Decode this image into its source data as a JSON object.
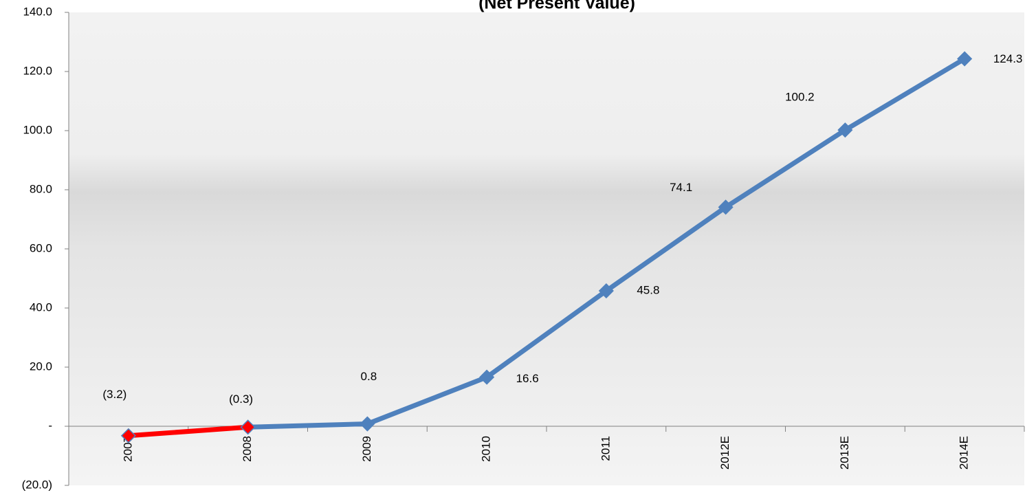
{
  "chart_data": {
    "type": "line",
    "subtitle": "(Net Present Value)",
    "categories": [
      "2007",
      "2008",
      "2009",
      "2010",
      "2011",
      "2012E",
      "2013E",
      "2014E"
    ],
    "values": [
      -3.2,
      -0.3,
      0.8,
      16.6,
      45.8,
      74.1,
      100.2,
      124.3
    ],
    "value_labels": [
      "(3.2)",
      "(0.3)",
      "0.8",
      "16.6",
      "45.8",
      "74.1",
      "100.2",
      "124.3"
    ],
    "color": "#4f81bd",
    "point_colors": [
      "#ff0000",
      "#ff0000",
      "#4f81bd",
      "#4f81bd",
      "#4f81bd",
      "#4f81bd",
      "#4f81bd",
      "#4f81bd"
    ],
    "ylim": [
      -20,
      140
    ],
    "yticks": [
      {
        "value": -20,
        "label": "(20.0)"
      },
      {
        "value": 0,
        "label": "-"
      },
      {
        "value": 20,
        "label": "20.0"
      },
      {
        "value": 40,
        "label": "40.0"
      },
      {
        "value": 60,
        "label": "60.0"
      },
      {
        "value": 80,
        "label": "80.0"
      },
      {
        "value": 100,
        "label": "100.0"
      },
      {
        "value": 120,
        "label": "120.0"
      },
      {
        "value": 140,
        "label": "140.0"
      }
    ],
    "grid": false
  }
}
